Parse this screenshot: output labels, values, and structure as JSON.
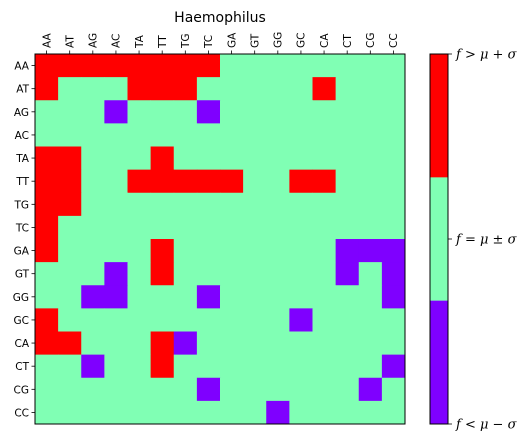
{
  "chart_data": {
    "type": "heatmap",
    "title": "Haemophilus",
    "x_labels": [
      "AA",
      "AT",
      "AG",
      "AC",
      "TA",
      "TT",
      "TG",
      "TC",
      "GA",
      "GT",
      "GG",
      "GC",
      "CA",
      "CT",
      "CG",
      "CC"
    ],
    "y_labels": [
      "AA",
      "AT",
      "AG",
      "AC",
      "TA",
      "TT",
      "TG",
      "TC",
      "GA",
      "GT",
      "GG",
      "GC",
      "CA",
      "CT",
      "CG",
      "CC"
    ],
    "categories": {
      "0": "f < μ − σ",
      "1": "f = μ ± σ",
      "2": "f > μ + σ"
    },
    "values": [
      [
        2,
        2,
        2,
        2,
        2,
        2,
        2,
        2,
        1,
        1,
        1,
        1,
        1,
        1,
        1,
        1
      ],
      [
        2,
        1,
        1,
        1,
        2,
        2,
        2,
        1,
        1,
        1,
        1,
        1,
        2,
        1,
        1,
        1
      ],
      [
        1,
        1,
        1,
        0,
        1,
        1,
        1,
        0,
        1,
        1,
        1,
        1,
        1,
        1,
        1,
        1
      ],
      [
        1,
        1,
        1,
        1,
        1,
        1,
        1,
        1,
        1,
        1,
        1,
        1,
        1,
        1,
        1,
        1
      ],
      [
        2,
        2,
        1,
        1,
        1,
        2,
        1,
        1,
        1,
        1,
        1,
        1,
        1,
        1,
        1,
        1
      ],
      [
        2,
        2,
        1,
        1,
        2,
        2,
        2,
        2,
        2,
        1,
        1,
        2,
        2,
        1,
        1,
        1
      ],
      [
        2,
        2,
        1,
        1,
        1,
        1,
        1,
        1,
        1,
        1,
        1,
        1,
        1,
        1,
        1,
        1
      ],
      [
        2,
        1,
        1,
        1,
        1,
        1,
        1,
        1,
        1,
        1,
        1,
        1,
        1,
        1,
        1,
        1
      ],
      [
        2,
        1,
        1,
        1,
        1,
        2,
        1,
        1,
        1,
        1,
        1,
        1,
        1,
        0,
        0,
        0
      ],
      [
        1,
        1,
        1,
        0,
        1,
        2,
        1,
        1,
        1,
        1,
        1,
        1,
        1,
        0,
        1,
        0
      ],
      [
        1,
        1,
        0,
        0,
        1,
        1,
        1,
        0,
        1,
        1,
        1,
        1,
        1,
        1,
        1,
        0
      ],
      [
        2,
        1,
        1,
        1,
        1,
        1,
        1,
        1,
        1,
        1,
        1,
        0,
        1,
        1,
        1,
        1
      ],
      [
        2,
        2,
        1,
        1,
        1,
        2,
        0,
        1,
        1,
        1,
        1,
        1,
        1,
        1,
        1,
        1
      ],
      [
        1,
        1,
        0,
        1,
        1,
        2,
        1,
        1,
        1,
        1,
        1,
        1,
        1,
        1,
        1,
        0
      ],
      [
        1,
        1,
        1,
        1,
        1,
        1,
        1,
        0,
        1,
        1,
        1,
        1,
        1,
        1,
        0,
        1
      ],
      [
        1,
        1,
        1,
        1,
        1,
        1,
        1,
        1,
        1,
        1,
        0,
        1,
        1,
        1,
        1,
        1
      ]
    ],
    "colors": {
      "0": "#7f00ff",
      "1": "#80ffb4",
      "2": "#ff0000"
    },
    "colorbar": {
      "labels": [
        "f > μ + σ",
        "f = μ ± σ",
        "f < μ − σ"
      ]
    }
  }
}
